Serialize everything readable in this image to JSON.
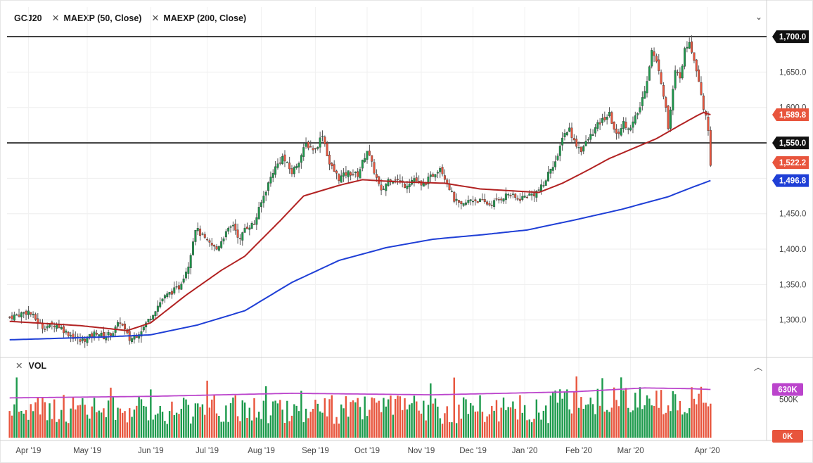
{
  "symbol": "GCJ20",
  "indicators": [
    {
      "label": "MAEXP (50, Close)",
      "color": "#b22222"
    },
    {
      "label": "MAEXP (200, Close)",
      "color": "#1f3fd6"
    }
  ],
  "volume_panel": {
    "label": "VOL",
    "tag": "630K",
    "zero_tag": "0K",
    "ytick": "500K"
  },
  "colors": {
    "up": "#1d9a4c",
    "down": "#e8553d",
    "ema50": "#b22222",
    "ema200": "#1f3fd6",
    "vol_avg": "#bb44cc"
  },
  "chart_data": {
    "type": "candlestick",
    "title": "GCJ20",
    "ylim": [
      1255,
      1712
    ],
    "yticks": [
      "1,300.0",
      "1,350.0",
      "1,400.0",
      "1,450.0",
      "1,500.0",
      "1,550.0",
      "1,600.0",
      "1,650.0"
    ],
    "ytick_values": [
      1300,
      1350,
      1400,
      1450,
      1500,
      1550,
      1600,
      1650
    ],
    "xticks": [
      "Apr '19",
      "May '19",
      "Jun '19",
      "Jul '19",
      "Aug '19",
      "Sep '19",
      "Oct '19",
      "Nov '19",
      "Dec '19",
      "Jan '20",
      "Feb '20",
      "Mar '20",
      "Apr '20"
    ],
    "horizontal_lines": [
      1700,
      1550
    ],
    "price_tags": [
      {
        "value": 1700.0,
        "label": "1,700.0",
        "color": "#111111"
      },
      {
        "value": 1589.8,
        "label": "1,589.8",
        "color": "#e8553d"
      },
      {
        "value": 1550.0,
        "label": "1,550.0",
        "color": "#111111"
      },
      {
        "value": 1522.2,
        "label": "1,522.2",
        "color": "#e8553d"
      },
      {
        "value": 1496.8,
        "label": "1,496.8",
        "color": "#1f3fd6"
      }
    ],
    "close_path": [
      [
        0,
        1304
      ],
      [
        8,
        1312
      ],
      [
        14,
        1290
      ],
      [
        20,
        1294
      ],
      [
        24,
        1283
      ],
      [
        30,
        1270
      ],
      [
        34,
        1276
      ],
      [
        37,
        1283
      ],
      [
        40,
        1276
      ],
      [
        44,
        1283
      ],
      [
        47,
        1298
      ],
      [
        51,
        1272
      ],
      [
        54,
        1279
      ],
      [
        57,
        1290
      ],
      [
        62,
        1315
      ],
      [
        65,
        1330
      ],
      [
        69,
        1340
      ],
      [
        72,
        1346
      ],
      [
        76,
        1378
      ],
      [
        79,
        1430
      ],
      [
        84,
        1410
      ],
      [
        88,
        1400
      ],
      [
        91,
        1418
      ],
      [
        95,
        1435
      ],
      [
        98,
        1412
      ],
      [
        100,
        1430
      ],
      [
        104,
        1436
      ],
      [
        108,
        1475
      ],
      [
        112,
        1510
      ],
      [
        116,
        1530
      ],
      [
        120,
        1508
      ],
      [
        123,
        1525
      ],
      [
        126,
        1548
      ],
      [
        130,
        1540
      ],
      [
        133,
        1563
      ],
      [
        136,
        1520
      ],
      [
        140,
        1500
      ],
      [
        144,
        1508
      ],
      [
        148,
        1505
      ],
      [
        152,
        1540
      ],
      [
        155,
        1510
      ],
      [
        158,
        1480
      ],
      [
        161,
        1498
      ],
      [
        164,
        1500
      ],
      [
        168,
        1490
      ],
      [
        172,
        1500
      ],
      [
        175,
        1488
      ],
      [
        180,
        1505
      ],
      [
        183,
        1516
      ],
      [
        186,
        1495
      ],
      [
        189,
        1470
      ],
      [
        192,
        1460
      ],
      [
        196,
        1470
      ],
      [
        200,
        1468
      ],
      [
        204,
        1463
      ],
      [
        208,
        1470
      ],
      [
        212,
        1478
      ],
      [
        216,
        1470
      ],
      [
        220,
        1476
      ],
      [
        223,
        1478
      ],
      [
        227,
        1490
      ],
      [
        230,
        1515
      ],
      [
        233,
        1528
      ],
      [
        235,
        1560
      ],
      [
        238,
        1570
      ],
      [
        240,
        1552
      ],
      [
        243,
        1540
      ],
      [
        247,
        1560
      ],
      [
        250,
        1575
      ],
      [
        253,
        1585
      ],
      [
        255,
        1590
      ],
      [
        258,
        1560
      ],
      [
        261,
        1578
      ],
      [
        264,
        1570
      ],
      [
        268,
        1600
      ],
      [
        271,
        1640
      ],
      [
        273,
        1680
      ],
      [
        276,
        1655
      ],
      [
        279,
        1600
      ],
      [
        280,
        1570
      ],
      [
        283,
        1650
      ],
      [
        285,
        1645
      ],
      [
        287,
        1680
      ],
      [
        289,
        1695
      ],
      [
        291,
        1668
      ],
      [
        293,
        1640
      ],
      [
        295,
        1600
      ],
      [
        297,
        1570
      ],
      [
        298,
        1522
      ]
    ],
    "ema50": [
      [
        0,
        1298
      ],
      [
        30,
        1292
      ],
      [
        50,
        1285
      ],
      [
        60,
        1296
      ],
      [
        75,
        1335
      ],
      [
        90,
        1370
      ],
      [
        100,
        1390
      ],
      [
        115,
        1440
      ],
      [
        125,
        1475
      ],
      [
        140,
        1490
      ],
      [
        150,
        1498
      ],
      [
        165,
        1495
      ],
      [
        185,
        1493
      ],
      [
        200,
        1485
      ],
      [
        225,
        1480
      ],
      [
        235,
        1493
      ],
      [
        245,
        1510
      ],
      [
        255,
        1528
      ],
      [
        265,
        1542
      ],
      [
        275,
        1556
      ],
      [
        285,
        1575
      ],
      [
        292,
        1588
      ],
      [
        295,
        1593
      ],
      [
        298,
        1589.8
      ]
    ],
    "ema200": [
      [
        0,
        1272
      ],
      [
        40,
        1276
      ],
      [
        60,
        1279
      ],
      [
        80,
        1293
      ],
      [
        100,
        1313
      ],
      [
        120,
        1353
      ],
      [
        140,
        1384
      ],
      [
        160,
        1402
      ],
      [
        180,
        1414
      ],
      [
        200,
        1420
      ],
      [
        220,
        1427
      ],
      [
        240,
        1441
      ],
      [
        260,
        1456
      ],
      [
        280,
        1474
      ],
      [
        290,
        1487
      ],
      [
        298,
        1496.8
      ]
    ],
    "n_bars": 299,
    "volume": {
      "ylim": [
        0,
        800000
      ],
      "avg_level_k": [
        [
          0,
          520
        ],
        [
          60,
          540
        ],
        [
          120,
          580
        ],
        [
          180,
          560
        ],
        [
          240,
          600
        ],
        [
          270,
          650
        ],
        [
          290,
          640
        ],
        [
          298,
          630
        ]
      ]
    }
  }
}
